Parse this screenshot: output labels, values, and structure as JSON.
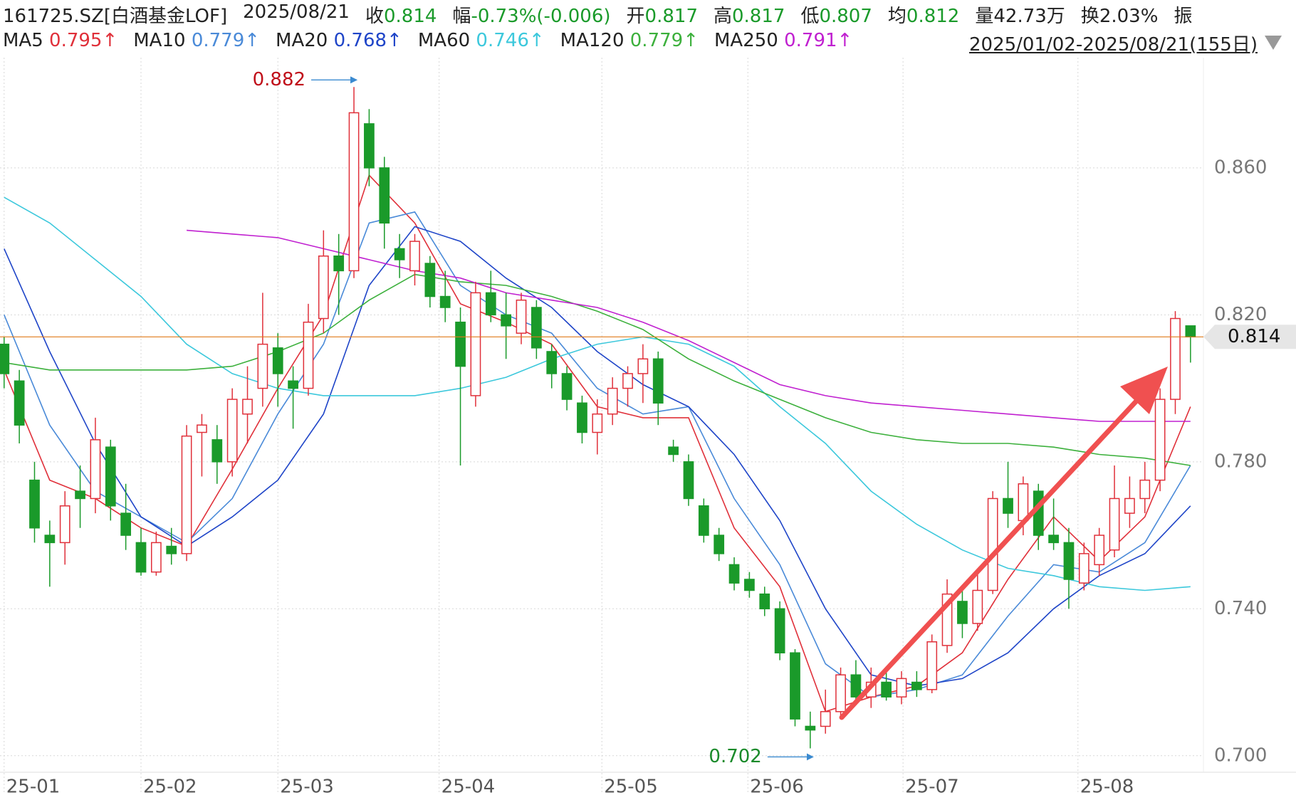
{
  "header": {
    "code": "161725.SZ[白酒基金LOF]",
    "date": "2025/08/21",
    "quote": [
      {
        "label": "收",
        "value": "0.814",
        "color": "#1a9a2a"
      },
      {
        "label": "幅",
        "value": "-0.73%(-0.006)",
        "color": "#1a9a2a"
      },
      {
        "label": "开",
        "value": "0.817",
        "color": "#1a9a2a"
      },
      {
        "label": "高",
        "value": "0.817",
        "color": "#1a9a2a"
      },
      {
        "label": "低",
        "value": "0.807",
        "color": "#1a9a2a"
      },
      {
        "label": "均",
        "value": "0.812",
        "color": "#1a9a2a"
      },
      {
        "label": "量",
        "value": "42.73万",
        "color": "#222222"
      },
      {
        "label": "换",
        "value": "2.03%",
        "color": "#222222"
      }
    ],
    "trailing": "振",
    "range_label": "2025/01/02-2025/08/21(155日)"
  },
  "chart_data": {
    "type": "candlestick",
    "up_color": "#e0303a",
    "down_color": "#1a9a2a",
    "xlim": [
      -0.27,
      78.85
    ],
    "ylim": [
      0.6955,
      0.89
    ],
    "xticks": [
      {
        "value": 0,
        "label": "25-01"
      },
      {
        "value": 9,
        "label": "25-02"
      },
      {
        "value": 18,
        "label": "25-03"
      },
      {
        "value": 28.6,
        "label": "25-04"
      },
      {
        "value": 39.3,
        "label": "25-05"
      },
      {
        "value": 48.9,
        "label": "25-06"
      },
      {
        "value": 59.1,
        "label": "25-07"
      },
      {
        "value": 70.6,
        "label": "25-08"
      }
    ],
    "yticks": [
      {
        "value": 0.7,
        "label": "0.700"
      },
      {
        "value": 0.74,
        "label": "0.740"
      },
      {
        "value": 0.78,
        "label": "0.780"
      },
      {
        "value": 0.82,
        "label": "0.820"
      },
      {
        "value": 0.86,
        "label": "0.860"
      }
    ],
    "grid": true,
    "high_mark": 0.882,
    "low_mark": 0.702,
    "last_price": 0.814,
    "last_price_color": "#e07818",
    "candles": [
      [
        0.812,
        0.814,
        0.8,
        0.804
      ],
      [
        0.802,
        0.805,
        0.785,
        0.79
      ],
      [
        0.775,
        0.78,
        0.758,
        0.762
      ],
      [
        0.76,
        0.764,
        0.746,
        0.758
      ],
      [
        0.758,
        0.772,
        0.752,
        0.768
      ],
      [
        0.772,
        0.779,
        0.762,
        0.77
      ],
      [
        0.77,
        0.792,
        0.766,
        0.786
      ],
      [
        0.784,
        0.786,
        0.764,
        0.768
      ],
      [
        0.766,
        0.774,
        0.756,
        0.76
      ],
      [
        0.758,
        0.762,
        0.749,
        0.75
      ],
      [
        0.75,
        0.761,
        0.749,
        0.758
      ],
      [
        0.757,
        0.762,
        0.752,
        0.755
      ],
      [
        0.755,
        0.79,
        0.753,
        0.787
      ],
      [
        0.788,
        0.793,
        0.776,
        0.79
      ],
      [
        0.786,
        0.79,
        0.774,
        0.78
      ],
      [
        0.78,
        0.8,
        0.776,
        0.797
      ],
      [
        0.793,
        0.806,
        0.785,
        0.797
      ],
      [
        0.8,
        0.826,
        0.795,
        0.812
      ],
      [
        0.811,
        0.815,
        0.795,
        0.804
      ],
      [
        0.802,
        0.806,
        0.789,
        0.8
      ],
      [
        0.8,
        0.823,
        0.798,
        0.818
      ],
      [
        0.819,
        0.843,
        0.815,
        0.836
      ],
      [
        0.836,
        0.842,
        0.82,
        0.832
      ],
      [
        0.832,
        0.882,
        0.83,
        0.875
      ],
      [
        0.872,
        0.876,
        0.855,
        0.86
      ],
      [
        0.86,
        0.863,
        0.838,
        0.845
      ],
      [
        0.838,
        0.842,
        0.83,
        0.835
      ],
      [
        0.832,
        0.842,
        0.828,
        0.84
      ],
      [
        0.834,
        0.836,
        0.822,
        0.825
      ],
      [
        0.825,
        0.832,
        0.818,
        0.822
      ],
      [
        0.818,
        0.822,
        0.779,
        0.806
      ],
      [
        0.798,
        0.829,
        0.795,
        0.826
      ],
      [
        0.826,
        0.832,
        0.818,
        0.82
      ],
      [
        0.82,
        0.826,
        0.808,
        0.817
      ],
      [
        0.815,
        0.826,
        0.812,
        0.824
      ],
      [
        0.822,
        0.824,
        0.808,
        0.811
      ],
      [
        0.81,
        0.812,
        0.8,
        0.804
      ],
      [
        0.804,
        0.806,
        0.794,
        0.797
      ],
      [
        0.796,
        0.798,
        0.785,
        0.788
      ],
      [
        0.788,
        0.797,
        0.782,
        0.793
      ],
      [
        0.793,
        0.803,
        0.79,
        0.8
      ],
      [
        0.8,
        0.806,
        0.795,
        0.804
      ],
      [
        0.804,
        0.812,
        0.796,
        0.808
      ],
      [
        0.808,
        0.81,
        0.79,
        0.796
      ],
      [
        0.784,
        0.786,
        0.78,
        0.782
      ],
      [
        0.78,
        0.782,
        0.768,
        0.77
      ],
      [
        0.768,
        0.77,
        0.758,
        0.76
      ],
      [
        0.76,
        0.762,
        0.753,
        0.755
      ],
      [
        0.752,
        0.754,
        0.745,
        0.747
      ],
      [
        0.748,
        0.75,
        0.743,
        0.745
      ],
      [
        0.744,
        0.746,
        0.738,
        0.74
      ],
      [
        0.74,
        0.742,
        0.726,
        0.728
      ],
      [
        0.728,
        0.729,
        0.708,
        0.71
      ],
      [
        0.708,
        0.712,
        0.702,
        0.707
      ],
      [
        0.708,
        0.718,
        0.706,
        0.712
      ],
      [
        0.712,
        0.724,
        0.71,
        0.722
      ],
      [
        0.722,
        0.726,
        0.714,
        0.716
      ],
      [
        0.716,
        0.724,
        0.713,
        0.72
      ],
      [
        0.72,
        0.724,
        0.715,
        0.716
      ],
      [
        0.716,
        0.723,
        0.714,
        0.721
      ],
      [
        0.72,
        0.723,
        0.716,
        0.718
      ],
      [
        0.718,
        0.733,
        0.717,
        0.731
      ],
      [
        0.73,
        0.748,
        0.728,
        0.744
      ],
      [
        0.742,
        0.745,
        0.732,
        0.736
      ],
      [
        0.736,
        0.75,
        0.734,
        0.745
      ],
      [
        0.745,
        0.772,
        0.744,
        0.77
      ],
      [
        0.77,
        0.78,
        0.762,
        0.766
      ],
      [
        0.764,
        0.776,
        0.76,
        0.774
      ],
      [
        0.772,
        0.774,
        0.756,
        0.76
      ],
      [
        0.76,
        0.77,
        0.756,
        0.758
      ],
      [
        0.758,
        0.762,
        0.74,
        0.748
      ],
      [
        0.747,
        0.758,
        0.745,
        0.755
      ],
      [
        0.752,
        0.762,
        0.749,
        0.76
      ],
      [
        0.756,
        0.779,
        0.754,
        0.77
      ],
      [
        0.766,
        0.776,
        0.762,
        0.77
      ],
      [
        0.77,
        0.78,
        0.766,
        0.775
      ],
      [
        0.775,
        0.8,
        0.772,
        0.797
      ],
      [
        0.797,
        0.821,
        0.793,
        0.819
      ],
      [
        0.817,
        0.817,
        0.807,
        0.814
      ]
    ],
    "ma_x": [
      0,
      3,
      6,
      9,
      12,
      15,
      18,
      21,
      24,
      27,
      30,
      33,
      36,
      39,
      42,
      45,
      48,
      51,
      54,
      57,
      60,
      63,
      66,
      69,
      72,
      75,
      78
    ],
    "ma_lines": [
      {
        "name": "MA5",
        "legend_value": "0.795↑",
        "color": "#e0303a",
        "values": [
          0.805,
          0.775,
          0.77,
          0.762,
          0.757,
          0.778,
          0.8,
          0.82,
          0.858,
          0.845,
          0.823,
          0.818,
          0.812,
          0.795,
          0.792,
          0.792,
          0.762,
          0.746,
          0.712,
          0.716,
          0.719,
          0.728,
          0.748,
          0.765,
          0.753,
          0.765,
          0.795
        ]
      },
      {
        "name": "MA10",
        "legend_value": "0.779↑",
        "color": "#4a8ad8",
        "values": [
          0.82,
          0.79,
          0.772,
          0.765,
          0.758,
          0.77,
          0.793,
          0.812,
          0.845,
          0.848,
          0.828,
          0.82,
          0.815,
          0.8,
          0.793,
          0.795,
          0.77,
          0.752,
          0.725,
          0.716,
          0.718,
          0.722,
          0.738,
          0.752,
          0.75,
          0.758,
          0.779
        ]
      },
      {
        "name": "MA20",
        "legend_value": "0.768↑",
        "color": "#1f45c8",
        "values": [
          0.838,
          0.81,
          0.785,
          0.765,
          0.757,
          0.765,
          0.775,
          0.793,
          0.828,
          0.844,
          0.84,
          0.83,
          0.822,
          0.81,
          0.801,
          0.795,
          0.782,
          0.764,
          0.74,
          0.722,
          0.719,
          0.721,
          0.728,
          0.74,
          0.749,
          0.755,
          0.768
        ]
      },
      {
        "name": "MA60",
        "legend_value": "0.746↑",
        "color": "#3cc8dc",
        "values": [
          0.852,
          0.845,
          0.835,
          0.825,
          0.812,
          0.804,
          0.8,
          0.798,
          0.798,
          0.798,
          0.8,
          0.803,
          0.808,
          0.812,
          0.814,
          0.812,
          0.806,
          0.795,
          0.785,
          0.772,
          0.763,
          0.756,
          0.751,
          0.749,
          0.746,
          0.745,
          0.746
        ]
      },
      {
        "name": "MA120",
        "legend_value": "0.779↑",
        "color": "#3cb03c",
        "values": [
          0.807,
          0.805,
          0.805,
          0.805,
          0.805,
          0.806,
          0.81,
          0.815,
          0.824,
          0.831,
          0.829,
          0.828,
          0.825,
          0.821,
          0.816,
          0.808,
          0.802,
          0.797,
          0.792,
          0.788,
          0.786,
          0.785,
          0.785,
          0.784,
          0.782,
          0.781,
          0.779
        ]
      },
      {
        "name": "MA250",
        "legend_value": "0.791↑",
        "color": "#c020d0",
        "values": [
          null,
          null,
          null,
          null,
          0.843,
          0.842,
          0.841,
          0.838,
          0.835,
          0.832,
          0.83,
          0.826,
          0.824,
          0.822,
          0.818,
          0.813,
          0.807,
          0.801,
          0.798,
          0.796,
          0.795,
          0.794,
          0.793,
          0.792,
          0.791,
          0.791,
          0.791
        ]
      }
    ]
  }
}
